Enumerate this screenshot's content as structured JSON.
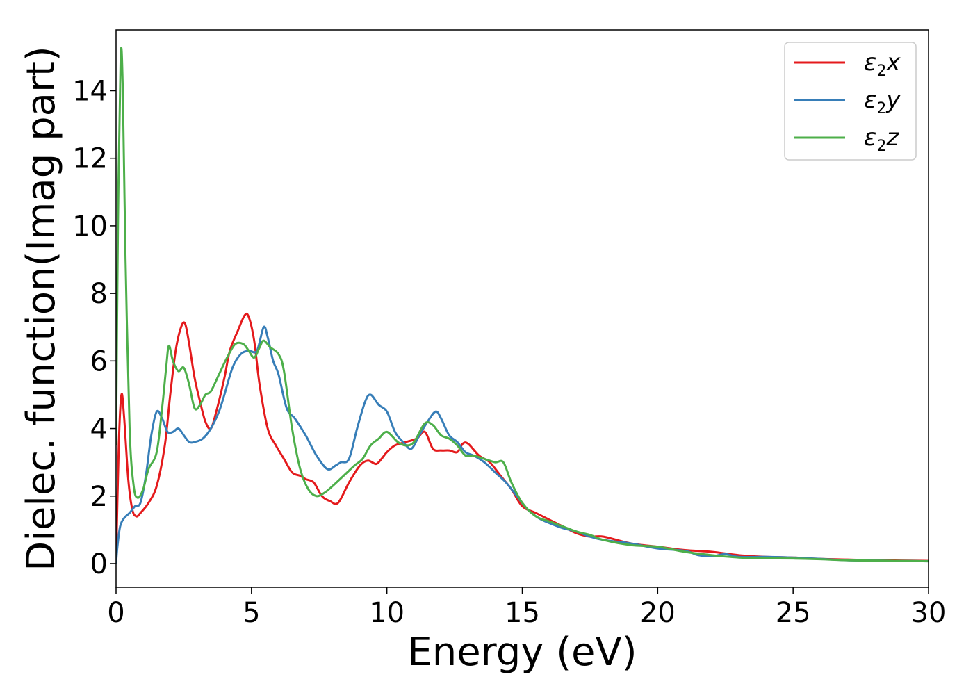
{
  "chart_data": {
    "type": "line",
    "xlabel": "Energy (eV)",
    "ylabel": "Dielec. function(Imag part)",
    "xlim": [
      0,
      30
    ],
    "ylim": [
      -0.7,
      15.8
    ],
    "xticks": [
      "0",
      "5",
      "10",
      "15",
      "20",
      "25",
      "30"
    ],
    "yticks": [
      "0",
      "2",
      "4",
      "6",
      "8",
      "10",
      "12",
      "14"
    ],
    "grid": false,
    "legend_position": "top-right",
    "legend": [
      {
        "base": "ε",
        "sub": "2",
        "suffix": "x"
      },
      {
        "base": "ε",
        "sub": "2",
        "suffix": "y"
      },
      {
        "base": "ε",
        "sub": "2",
        "suffix": "z"
      }
    ],
    "series": [
      {
        "name": "ε2x",
        "color": "#e41a1c",
        "points": [
          [
            0,
            0
          ],
          [
            0.1,
            3.5
          ],
          [
            0.2,
            5.0
          ],
          [
            0.3,
            4.3
          ],
          [
            0.45,
            2.5
          ],
          [
            0.6,
            1.6
          ],
          [
            0.75,
            1.4
          ],
          [
            0.9,
            1.5
          ],
          [
            1.2,
            1.8
          ],
          [
            1.5,
            2.3
          ],
          [
            1.8,
            3.5
          ],
          [
            2.0,
            5.0
          ],
          [
            2.2,
            6.3
          ],
          [
            2.4,
            7.0
          ],
          [
            2.55,
            7.1
          ],
          [
            2.7,
            6.5
          ],
          [
            2.9,
            5.5
          ],
          [
            3.1,
            4.8
          ],
          [
            3.3,
            4.2
          ],
          [
            3.5,
            4.0
          ],
          [
            3.7,
            4.5
          ],
          [
            4.0,
            5.5
          ],
          [
            4.2,
            6.3
          ],
          [
            4.5,
            6.9
          ],
          [
            4.75,
            7.35
          ],
          [
            4.9,
            7.3
          ],
          [
            5.1,
            6.6
          ],
          [
            5.3,
            5.3
          ],
          [
            5.6,
            4.0
          ],
          [
            5.9,
            3.5
          ],
          [
            6.2,
            3.1
          ],
          [
            6.5,
            2.7
          ],
          [
            6.8,
            2.6
          ],
          [
            7.0,
            2.5
          ],
          [
            7.3,
            2.4
          ],
          [
            7.6,
            2.0
          ],
          [
            7.9,
            1.85
          ],
          [
            8.2,
            1.8
          ],
          [
            8.6,
            2.4
          ],
          [
            9.0,
            2.9
          ],
          [
            9.3,
            3.05
          ],
          [
            9.6,
            2.95
          ],
          [
            9.8,
            3.1
          ],
          [
            10.0,
            3.3
          ],
          [
            10.3,
            3.5
          ],
          [
            10.7,
            3.6
          ],
          [
            11.1,
            3.7
          ],
          [
            11.4,
            3.9
          ],
          [
            11.7,
            3.4
          ],
          [
            12.0,
            3.35
          ],
          [
            12.3,
            3.35
          ],
          [
            12.6,
            3.3
          ],
          [
            12.8,
            3.55
          ],
          [
            13.0,
            3.55
          ],
          [
            13.4,
            3.2
          ],
          [
            13.8,
            3.0
          ],
          [
            14.2,
            2.6
          ],
          [
            14.6,
            2.2
          ],
          [
            15.0,
            1.7
          ],
          [
            15.5,
            1.5
          ],
          [
            16.0,
            1.3
          ],
          [
            16.5,
            1.1
          ],
          [
            17.0,
            0.9
          ],
          [
            17.5,
            0.8
          ],
          [
            18.0,
            0.8
          ],
          [
            19.0,
            0.6
          ],
          [
            20.0,
            0.5
          ],
          [
            21.0,
            0.4
          ],
          [
            22.0,
            0.35
          ],
          [
            23.0,
            0.25
          ],
          [
            24.0,
            0.2
          ],
          [
            25.0,
            0.18
          ],
          [
            26.0,
            0.14
          ],
          [
            27.0,
            0.12
          ],
          [
            28.0,
            0.1
          ],
          [
            29.0,
            0.09
          ],
          [
            30.0,
            0.08
          ]
        ]
      },
      {
        "name": "ε2y",
        "color": "#377eb8",
        "points": [
          [
            0,
            0
          ],
          [
            0.05,
            0.5
          ],
          [
            0.15,
            1.1
          ],
          [
            0.3,
            1.35
          ],
          [
            0.5,
            1.5
          ],
          [
            0.7,
            1.7
          ],
          [
            0.9,
            1.8
          ],
          [
            1.1,
            2.6
          ],
          [
            1.3,
            3.8
          ],
          [
            1.5,
            4.5
          ],
          [
            1.7,
            4.3
          ],
          [
            1.9,
            3.9
          ],
          [
            2.1,
            3.9
          ],
          [
            2.3,
            4.0
          ],
          [
            2.5,
            3.8
          ],
          [
            2.7,
            3.6
          ],
          [
            2.9,
            3.6
          ],
          [
            3.2,
            3.7
          ],
          [
            3.5,
            4.0
          ],
          [
            3.8,
            4.5
          ],
          [
            4.0,
            5.0
          ],
          [
            4.3,
            5.8
          ],
          [
            4.6,
            6.2
          ],
          [
            4.9,
            6.3
          ],
          [
            5.2,
            6.3
          ],
          [
            5.45,
            7.0
          ],
          [
            5.6,
            6.7
          ],
          [
            5.8,
            6.0
          ],
          [
            6.0,
            5.6
          ],
          [
            6.3,
            4.6
          ],
          [
            6.6,
            4.3
          ],
          [
            7.0,
            3.8
          ],
          [
            7.4,
            3.2
          ],
          [
            7.8,
            2.8
          ],
          [
            8.1,
            2.9
          ],
          [
            8.3,
            3.0
          ],
          [
            8.6,
            3.1
          ],
          [
            8.9,
            4.0
          ],
          [
            9.2,
            4.8
          ],
          [
            9.4,
            5.0
          ],
          [
            9.7,
            4.7
          ],
          [
            10.0,
            4.5
          ],
          [
            10.3,
            3.9
          ],
          [
            10.6,
            3.6
          ],
          [
            10.9,
            3.4
          ],
          [
            11.2,
            3.8
          ],
          [
            11.5,
            4.2
          ],
          [
            11.8,
            4.5
          ],
          [
            12.0,
            4.3
          ],
          [
            12.3,
            3.8
          ],
          [
            12.6,
            3.6
          ],
          [
            12.9,
            3.3
          ],
          [
            13.2,
            3.2
          ],
          [
            13.6,
            3.0
          ],
          [
            14.0,
            2.7
          ],
          [
            14.4,
            2.4
          ],
          [
            14.8,
            2.0
          ],
          [
            15.2,
            1.6
          ],
          [
            15.6,
            1.35
          ],
          [
            16.0,
            1.2
          ],
          [
            16.5,
            1.05
          ],
          [
            17.0,
            0.95
          ],
          [
            17.5,
            0.8
          ],
          [
            18.0,
            0.7
          ],
          [
            19.0,
            0.6
          ],
          [
            20.0,
            0.45
          ],
          [
            21.0,
            0.38
          ],
          [
            21.5,
            0.25
          ],
          [
            22.0,
            0.22
          ],
          [
            22.5,
            0.28
          ],
          [
            23.0,
            0.2
          ],
          [
            24.0,
            0.2
          ],
          [
            25.0,
            0.18
          ],
          [
            26.0,
            0.14
          ],
          [
            27.0,
            0.1
          ],
          [
            28.0,
            0.09
          ],
          [
            29.0,
            0.08
          ],
          [
            30.0,
            0.07
          ]
        ]
      },
      {
        "name": "ε2z",
        "color": "#4daf4a",
        "points": [
          [
            0,
            3.5
          ],
          [
            0.07,
            10.0
          ],
          [
            0.17,
            15.0
          ],
          [
            0.25,
            14.0
          ],
          [
            0.35,
            9.0
          ],
          [
            0.5,
            4.0
          ],
          [
            0.65,
            2.3
          ],
          [
            0.8,
            1.95
          ],
          [
            1.0,
            2.2
          ],
          [
            1.2,
            2.8
          ],
          [
            1.5,
            3.3
          ],
          [
            1.7,
            4.6
          ],
          [
            1.85,
            5.8
          ],
          [
            1.95,
            6.45
          ],
          [
            2.1,
            6.0
          ],
          [
            2.3,
            5.7
          ],
          [
            2.5,
            5.8
          ],
          [
            2.7,
            5.3
          ],
          [
            2.9,
            4.6
          ],
          [
            3.1,
            4.7
          ],
          [
            3.3,
            5.0
          ],
          [
            3.5,
            5.1
          ],
          [
            3.8,
            5.6
          ],
          [
            4.1,
            6.1
          ],
          [
            4.4,
            6.5
          ],
          [
            4.7,
            6.5
          ],
          [
            4.9,
            6.3
          ],
          [
            5.1,
            6.1
          ],
          [
            5.3,
            6.4
          ],
          [
            5.45,
            6.6
          ],
          [
            5.7,
            6.4
          ],
          [
            6.0,
            6.2
          ],
          [
            6.2,
            5.7
          ],
          [
            6.5,
            4.0
          ],
          [
            6.8,
            2.8
          ],
          [
            7.1,
            2.2
          ],
          [
            7.4,
            2.0
          ],
          [
            7.7,
            2.1
          ],
          [
            8.0,
            2.3
          ],
          [
            8.4,
            2.6
          ],
          [
            8.8,
            2.9
          ],
          [
            9.1,
            3.1
          ],
          [
            9.4,
            3.5
          ],
          [
            9.7,
            3.7
          ],
          [
            10.0,
            3.9
          ],
          [
            10.4,
            3.6
          ],
          [
            10.7,
            3.5
          ],
          [
            11.0,
            3.6
          ],
          [
            11.4,
            4.15
          ],
          [
            11.7,
            4.1
          ],
          [
            12.0,
            3.8
          ],
          [
            12.3,
            3.7
          ],
          [
            12.6,
            3.5
          ],
          [
            12.9,
            3.2
          ],
          [
            13.2,
            3.2
          ],
          [
            13.6,
            3.1
          ],
          [
            14.0,
            3.0
          ],
          [
            14.3,
            3.0
          ],
          [
            14.6,
            2.4
          ],
          [
            15.0,
            1.8
          ],
          [
            15.5,
            1.4
          ],
          [
            16.0,
            1.25
          ],
          [
            16.5,
            1.1
          ],
          [
            17.0,
            0.95
          ],
          [
            17.5,
            0.85
          ],
          [
            18.0,
            0.7
          ],
          [
            19.0,
            0.55
          ],
          [
            20.0,
            0.5
          ],
          [
            21.0,
            0.35
          ],
          [
            22.0,
            0.25
          ],
          [
            23.0,
            0.18
          ],
          [
            24.0,
            0.16
          ],
          [
            25.0,
            0.15
          ],
          [
            26.0,
            0.13
          ],
          [
            27.0,
            0.1
          ],
          [
            28.0,
            0.09
          ],
          [
            29.0,
            0.08
          ],
          [
            30.0,
            0.07
          ]
        ]
      }
    ]
  }
}
